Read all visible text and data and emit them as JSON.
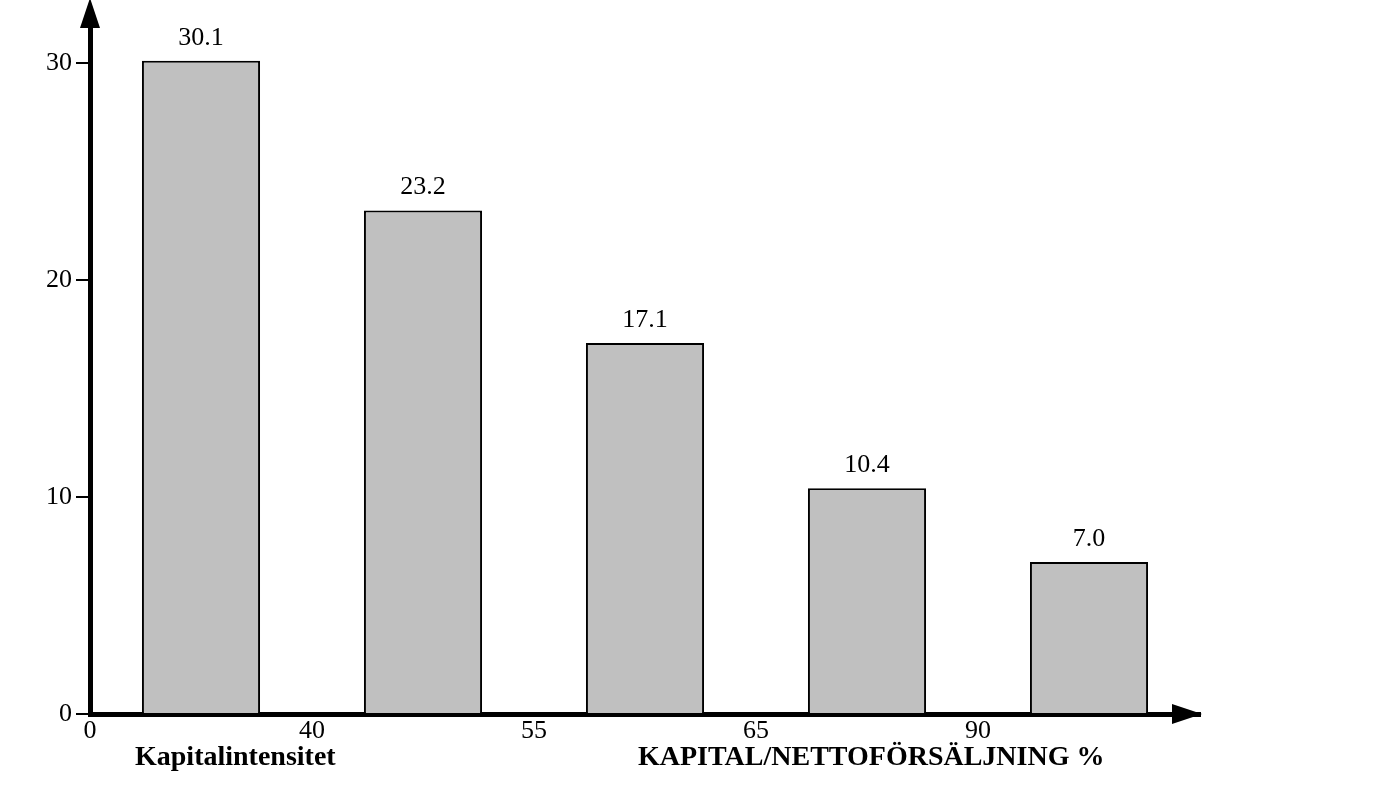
{
  "chart_data": {
    "type": "bar",
    "xlabel": "Kapitalintensitet",
    "annotations": [
      "KAPITAL/NETTOFÖRSÄLJNING %"
    ],
    "categories": [
      "0",
      "40",
      "55",
      "65",
      "90"
    ],
    "values": [
      30.1,
      23.2,
      17.1,
      10.4,
      7.0
    ],
    "value_labels": [
      "30.1",
      "23.2",
      "17.1",
      "10.4",
      "7.0"
    ],
    "color": "#c0c0c0",
    "ylim": [
      0,
      32
    ],
    "yticks": [
      0,
      10,
      20,
      30
    ],
    "grid": false,
    "legend": false
  }
}
